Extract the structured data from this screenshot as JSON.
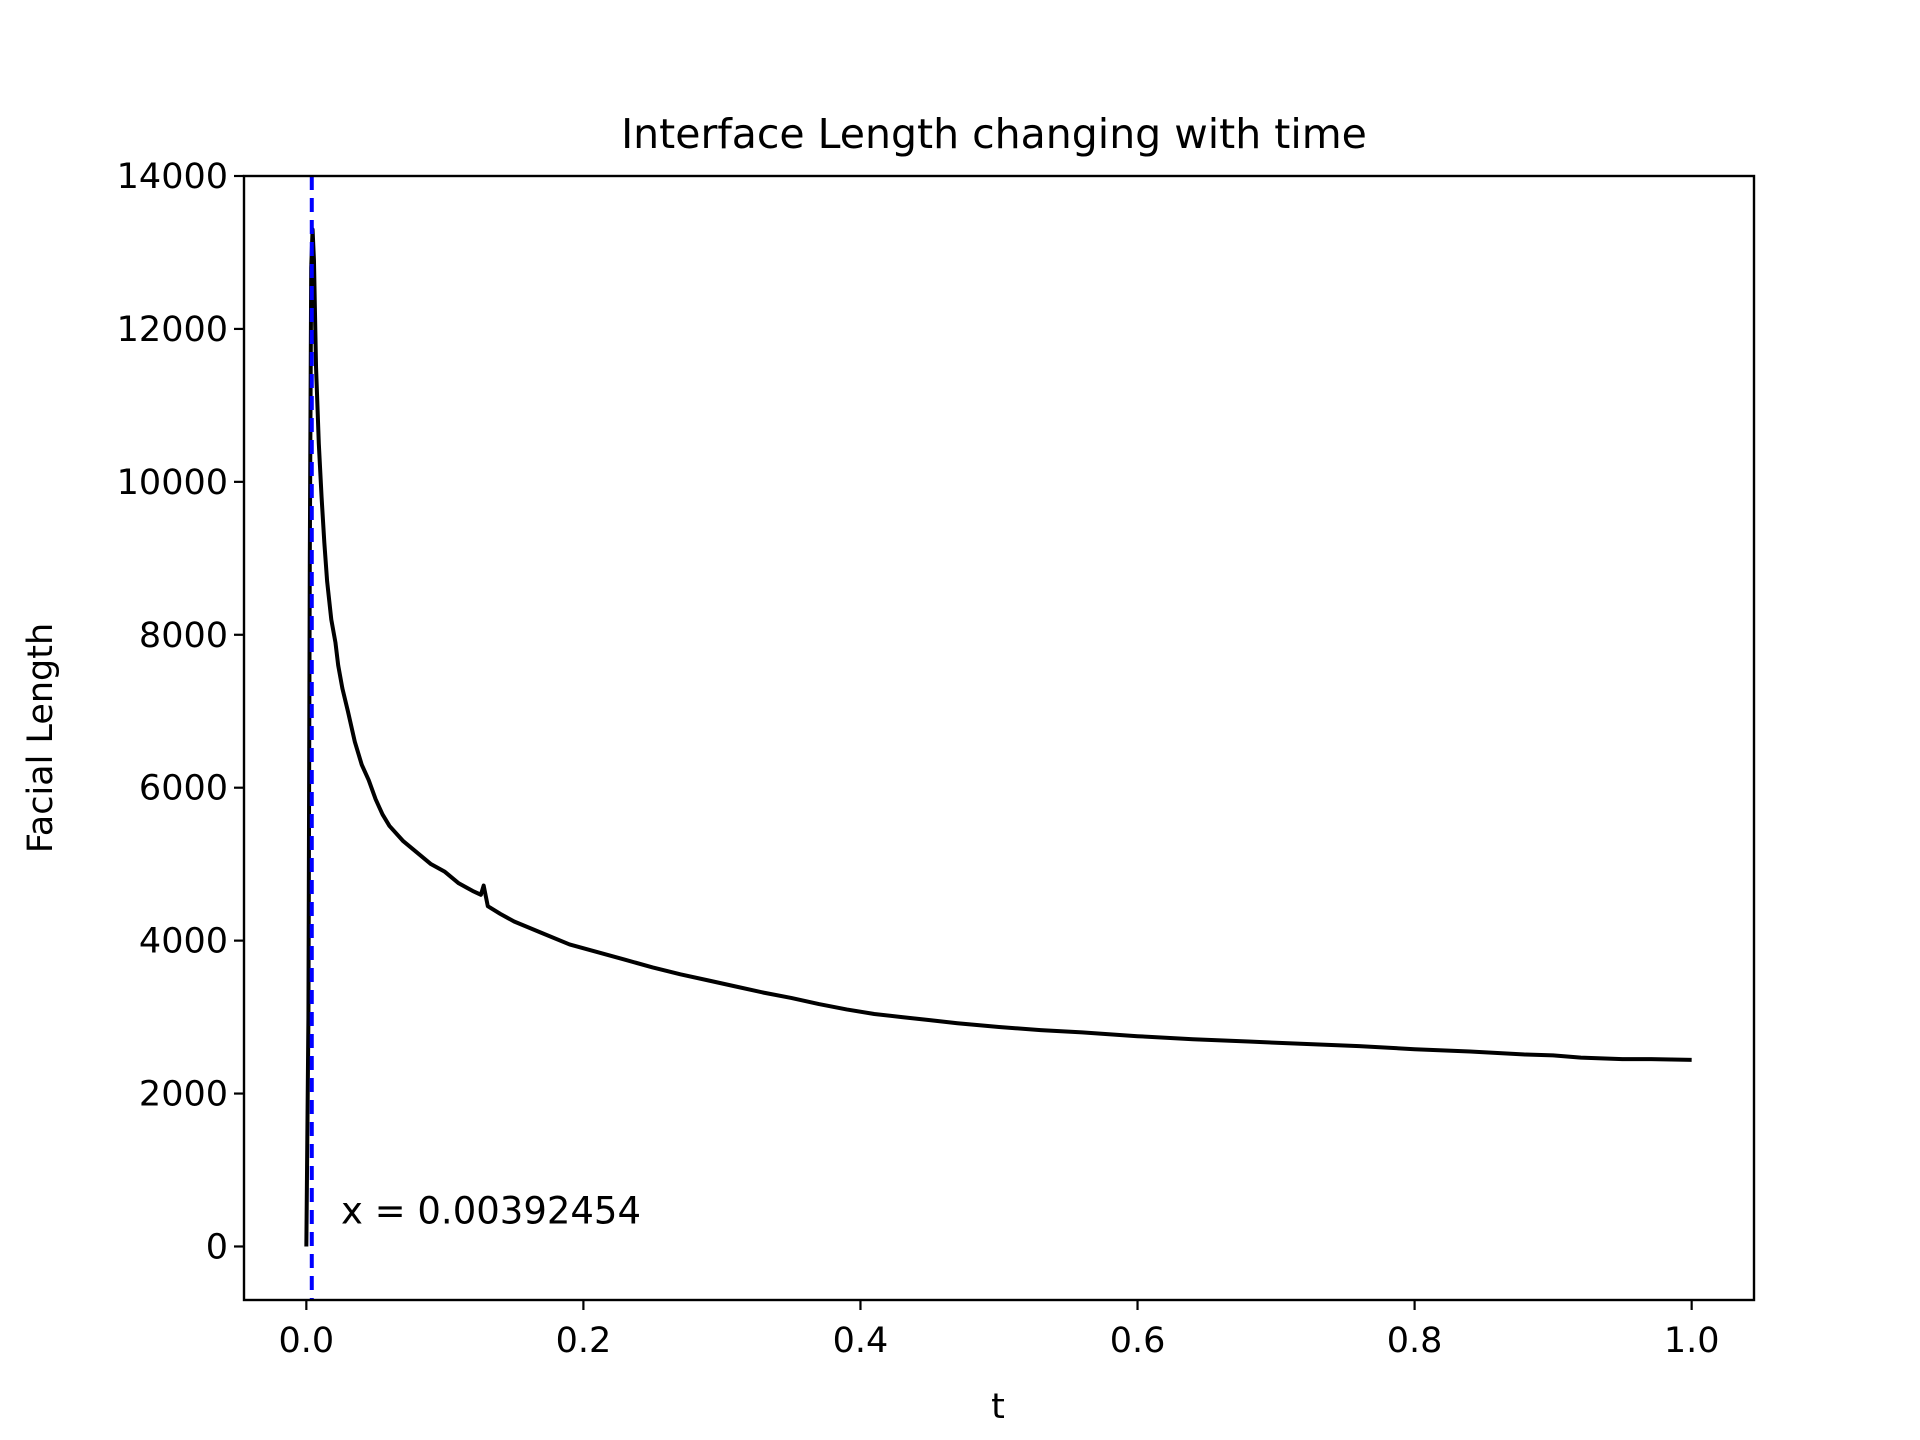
{
  "chart_data": {
    "type": "line",
    "title": "Interface Length changing with time",
    "xlabel": "t",
    "ylabel": "Facial Length",
    "xlim": [
      -0.045,
      1.045
    ],
    "ylim": [
      -700,
      14000
    ],
    "x_ticks": [
      "0.0",
      "0.2",
      "0.4",
      "0.6",
      "0.8",
      "1.0"
    ],
    "y_ticks": [
      "0",
      "2000",
      "4000",
      "6000",
      "8000",
      "10000",
      "12000",
      "14000"
    ],
    "grid": false,
    "legend": "none",
    "series": [
      {
        "color": "#000000",
        "points": [
          [
            0.0,
            0
          ],
          [
            0.0015,
            3000
          ],
          [
            0.0025,
            9000
          ],
          [
            0.0035,
            12800
          ],
          [
            0.0045,
            13300
          ],
          [
            0.0055,
            12900
          ],
          [
            0.007,
            11500
          ],
          [
            0.009,
            10500
          ],
          [
            0.011,
            9800
          ],
          [
            0.013,
            9200
          ],
          [
            0.015,
            8700
          ],
          [
            0.018,
            8200
          ],
          [
            0.021,
            7900
          ],
          [
            0.023,
            7600
          ],
          [
            0.026,
            7300
          ],
          [
            0.03,
            7000
          ],
          [
            0.035,
            6600
          ],
          [
            0.04,
            6300
          ],
          [
            0.045,
            6100
          ],
          [
            0.05,
            5850
          ],
          [
            0.055,
            5650
          ],
          [
            0.06,
            5500
          ],
          [
            0.07,
            5300
          ],
          [
            0.08,
            5150
          ],
          [
            0.09,
            5000
          ],
          [
            0.1,
            4900
          ],
          [
            0.11,
            4750
          ],
          [
            0.12,
            4650
          ],
          [
            0.126,
            4600
          ],
          [
            0.128,
            4720
          ],
          [
            0.131,
            4450
          ],
          [
            0.14,
            4350
          ],
          [
            0.15,
            4250
          ],
          [
            0.17,
            4100
          ],
          [
            0.19,
            3950
          ],
          [
            0.21,
            3850
          ],
          [
            0.23,
            3750
          ],
          [
            0.25,
            3650
          ],
          [
            0.27,
            3560
          ],
          [
            0.29,
            3480
          ],
          [
            0.31,
            3400
          ],
          [
            0.33,
            3320
          ],
          [
            0.35,
            3250
          ],
          [
            0.37,
            3170
          ],
          [
            0.39,
            3100
          ],
          [
            0.41,
            3040
          ],
          [
            0.43,
            3000
          ],
          [
            0.45,
            2960
          ],
          [
            0.47,
            2920
          ],
          [
            0.5,
            2870
          ],
          [
            0.53,
            2830
          ],
          [
            0.56,
            2800
          ],
          [
            0.6,
            2750
          ],
          [
            0.64,
            2710
          ],
          [
            0.68,
            2680
          ],
          [
            0.72,
            2650
          ],
          [
            0.76,
            2620
          ],
          [
            0.8,
            2580
          ],
          [
            0.84,
            2550
          ],
          [
            0.88,
            2510
          ],
          [
            0.9,
            2500
          ],
          [
            0.92,
            2470
          ],
          [
            0.95,
            2450
          ],
          [
            0.97,
            2450
          ],
          [
            1.0,
            2440
          ]
        ]
      }
    ],
    "vline": {
      "x": 0.00392454,
      "color": "#0000ff",
      "style": "dashed"
    },
    "annotation": {
      "text": "x = 0.00392454",
      "x": 0.025,
      "y": 300
    }
  }
}
